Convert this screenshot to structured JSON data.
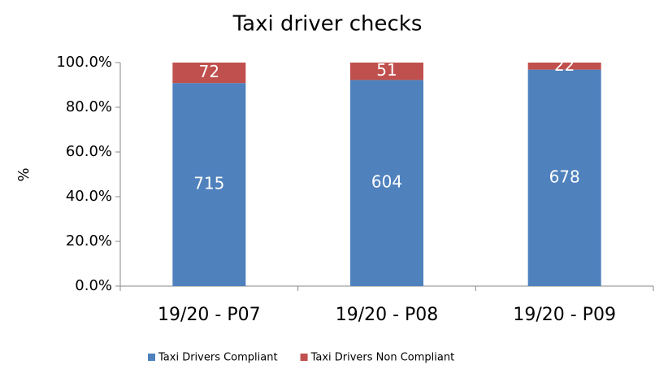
{
  "chart_data": {
    "type": "bar",
    "stacking": "percent",
    "title": "Taxi driver checks",
    "y_label": "%",
    "categories": [
      "19/20 - P07",
      "19/20 - P08",
      "19/20 - P09"
    ],
    "series": [
      {
        "name": "Taxi Drivers Compliant",
        "color": "#4f81bd",
        "values": [
          715,
          604,
          678
        ]
      },
      {
        "name": "Taxi Drivers Non Compliant",
        "color": "#c0504d",
        "values": [
          72,
          51,
          22
        ]
      }
    ],
    "ylim": [
      0,
      100
    ],
    "yticks": [
      {
        "value": 0,
        "label": "0.0%"
      },
      {
        "value": 20,
        "label": "20.0%"
      },
      {
        "value": 40,
        "label": "40.0%"
      },
      {
        "value": 60,
        "label": "60.0%"
      },
      {
        "value": 80,
        "label": "80.0%"
      },
      {
        "value": 100,
        "label": "100.0%"
      }
    ],
    "grid": false,
    "legend": "bottom"
  }
}
